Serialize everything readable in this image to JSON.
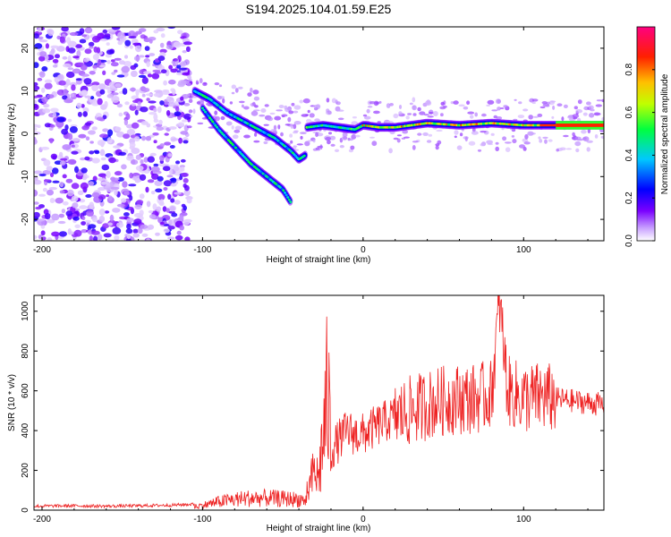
{
  "title": "S194.2025.104.01.59.E25",
  "chart_data": [
    {
      "type": "heatmap",
      "xlabel": "Height of straight line (km)",
      "ylabel": "Frequency (Hz)",
      "xlim": [
        -205,
        150
      ],
      "ylim": [
        -25,
        25
      ],
      "xticks": [
        -200,
        -100,
        0,
        100
      ],
      "yticks": [
        -20,
        -10,
        0,
        10,
        20
      ],
      "colorbar": {
        "label": "Normalized spectral amplitude",
        "range": [
          0,
          1
        ],
        "ticks": [
          0.0,
          0.2,
          0.4,
          0.6,
          0.8
        ],
        "colormap": [
          "#ffffff",
          "#7a00ff",
          "#0000ff",
          "#00c8ff",
          "#00ff00",
          "#ffff00",
          "#ff8000",
          "#ff0000",
          "#ff0080"
        ]
      },
      "ridges": [
        {
          "x": [
            -105,
            -95,
            -85,
            -75,
            -65,
            -55,
            -45,
            -40,
            -36
          ],
          "y": [
            10,
            8,
            5,
            3,
            1,
            -1,
            -4,
            -6,
            -5
          ]
        },
        {
          "x": [
            -100,
            -90,
            -80,
            -70,
            -60,
            -50,
            -45
          ],
          "y": [
            6,
            1,
            -3,
            -7,
            -10,
            -13,
            -16
          ]
        },
        {
          "x": [
            -35,
            -25,
            -15,
            -5,
            0,
            10,
            20,
            30,
            40,
            60,
            80,
            100,
            120,
            150
          ],
          "y": [
            1.5,
            2,
            1.5,
            1,
            2,
            1.5,
            1.5,
            2,
            2.5,
            2,
            2.5,
            2,
            2,
            2
          ]
        }
      ]
    },
    {
      "type": "line",
      "xlabel": "Height of straight line (km)",
      "ylabel": "SNR (10 * v/v)",
      "xlim": [
        -205,
        150
      ],
      "ylim": [
        0,
        1080
      ],
      "xticks": [
        -200,
        -100,
        0,
        100
      ],
      "yticks": [
        0,
        200,
        400,
        600,
        800,
        1000
      ],
      "color": "#ee2222",
      "series": [
        {
          "x": [
            -205,
            -180,
            -160,
            -140,
            -120,
            -105,
            -100,
            -90,
            -80,
            -70,
            -60,
            -50,
            -40,
            -35,
            -30,
            -28,
            -25,
            -22,
            -20,
            -15,
            -10,
            -5,
            0,
            10,
            20,
            30,
            40,
            50,
            60,
            70,
            80,
            85,
            90,
            100,
            110,
            120,
            130,
            140,
            150
          ],
          "y": [
            20,
            22,
            20,
            22,
            25,
            30,
            40,
            70,
            90,
            100,
            100,
            95,
            90,
            80,
            200,
            150,
            350,
            600,
            300,
            350,
            400,
            380,
            380,
            430,
            470,
            500,
            530,
            550,
            560,
            560,
            580,
            1050,
            600,
            560,
            570,
            560,
            550,
            540,
            530
          ]
        }
      ]
    }
  ]
}
